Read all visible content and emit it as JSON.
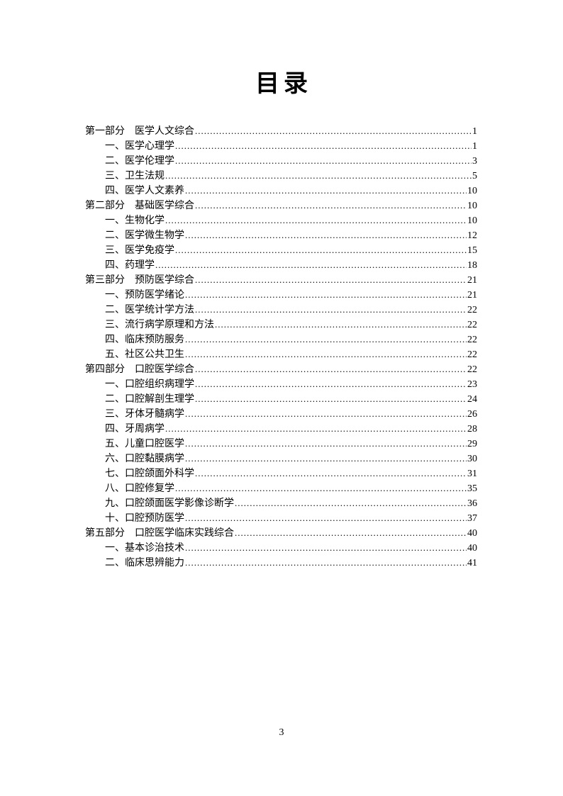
{
  "page": {
    "title": "目录",
    "footer_page_number": "3"
  },
  "toc": {
    "entries": [
      {
        "level": 1,
        "label": "第一部分　医学人文综合",
        "page": "1"
      },
      {
        "level": 2,
        "label": "一、医学心理学",
        "page": "1"
      },
      {
        "level": 2,
        "label": "二、医学伦理学",
        "page": "3"
      },
      {
        "level": 2,
        "label": "三、卫生法规",
        "page": "5"
      },
      {
        "level": 2,
        "label": "四、医学人文素养",
        "page": "10"
      },
      {
        "level": 1,
        "label": "第二部分　基础医学综合",
        "page": "10"
      },
      {
        "level": 2,
        "label": "一、生物化学",
        "page": "10"
      },
      {
        "level": 2,
        "label": "二、医学微生物学",
        "page": "12"
      },
      {
        "level": 2,
        "label": "三、医学免疫学",
        "page": "15"
      },
      {
        "level": 2,
        "label": "四、药理学",
        "page": "18"
      },
      {
        "level": 1,
        "label": "第三部分　预防医学综合",
        "page": "21"
      },
      {
        "level": 2,
        "label": "一、预防医学绪论",
        "page": "21"
      },
      {
        "level": 2,
        "label": "二、医学统计学方法",
        "page": "22"
      },
      {
        "level": 2,
        "label": "三、流行病学原理和方法",
        "page": "22"
      },
      {
        "level": 2,
        "label": "四、临床预防服务",
        "page": "22"
      },
      {
        "level": 2,
        "label": "五、社区公共卫生",
        "page": "22"
      },
      {
        "level": 1,
        "label": "第四部分　口腔医学综合",
        "page": "22"
      },
      {
        "level": 2,
        "label": "一、口腔组织病理学",
        "page": "23"
      },
      {
        "level": 2,
        "label": "二、口腔解剖生理学",
        "page": "24"
      },
      {
        "level": 2,
        "label": "三、牙体牙髓病学",
        "page": "26"
      },
      {
        "level": 2,
        "label": "四、牙周病学",
        "page": "28"
      },
      {
        "level": 2,
        "label": "五、儿童口腔医学",
        "page": "29"
      },
      {
        "level": 2,
        "label": "六、口腔黏膜病学",
        "page": "30"
      },
      {
        "level": 2,
        "label": "七、口腔颌面外科学",
        "page": "31"
      },
      {
        "level": 2,
        "label": "八、口腔修复学",
        "page": "35"
      },
      {
        "level": 2,
        "label": "九、口腔颌面医学影像诊断学",
        "page": "36"
      },
      {
        "level": 2,
        "label": "十、口腔预防医学",
        "page": "37"
      },
      {
        "level": 1,
        "label": "第五部分　口腔医学临床实践综合",
        "page": "40"
      },
      {
        "level": 2,
        "label": "一、基本诊治技术",
        "page": "40"
      },
      {
        "level": 2,
        "label": "二、临床思辨能力",
        "page": "41"
      }
    ]
  }
}
